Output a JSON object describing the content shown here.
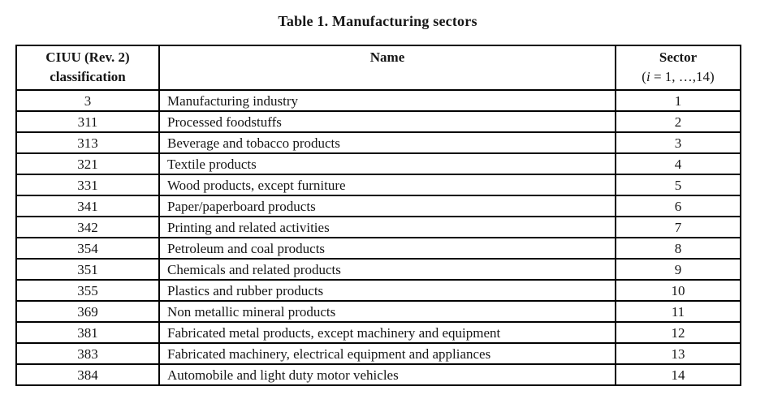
{
  "title": "Table 1. Manufacturing sectors",
  "table": {
    "headers": {
      "ciuu_line1": "CIUU (Rev. 2)",
      "ciuu_line2": "classification",
      "name": "Name",
      "sector_line1": "Sector",
      "sector_sub_prefix": "(",
      "sector_sub_var": "i",
      "sector_sub_rest": " = 1, …,14)"
    },
    "rows": [
      {
        "ciuu": "3",
        "name": "Manufacturing industry",
        "sector": "1"
      },
      {
        "ciuu": "311",
        "name": "Processed foodstuffs",
        "sector": "2"
      },
      {
        "ciuu": "313",
        "name": "Beverage and tobacco products",
        "sector": "3"
      },
      {
        "ciuu": "321",
        "name": "Textile products",
        "sector": "4"
      },
      {
        "ciuu": "331",
        "name": "Wood products, except furniture",
        "sector": "5"
      },
      {
        "ciuu": "341",
        "name": "Paper/paperboard products",
        "sector": "6"
      },
      {
        "ciuu": "342",
        "name": "Printing and related activities",
        "sector": "7"
      },
      {
        "ciuu": "354",
        "name": "Petroleum and coal products",
        "sector": "8"
      },
      {
        "ciuu": "351",
        "name": "Chemicals and related products",
        "sector": "9"
      },
      {
        "ciuu": "355",
        "name": "Plastics and rubber products",
        "sector": "10"
      },
      {
        "ciuu": "369",
        "name": "Non metallic mineral products",
        "sector": "11"
      },
      {
        "ciuu": "381",
        "name": "Fabricated metal products, except machinery and equipment",
        "sector": "12"
      },
      {
        "ciuu": "383",
        "name": "Fabricated machinery, electrical equipment and appliances",
        "sector": "13"
      },
      {
        "ciuu": "384",
        "name": "Automobile and light duty motor vehicles",
        "sector": "14"
      }
    ]
  },
  "colors": {
    "text": "#161616",
    "border": "#000000",
    "background": "#ffffff"
  }
}
